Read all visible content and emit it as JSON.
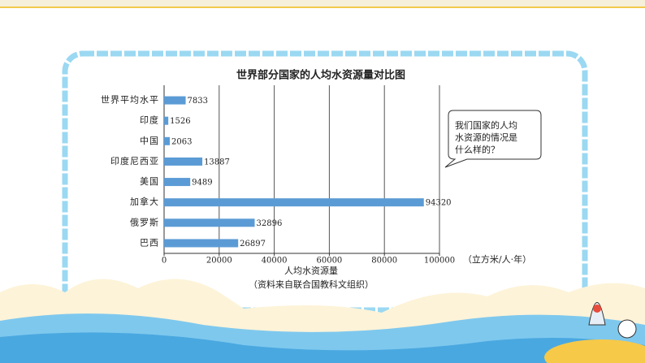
{
  "chart_data": {
    "type": "bar",
    "orientation": "horizontal",
    "title": "世界部分国家的人均水资源量对比图",
    "categories": [
      "世界平均水平",
      "印度",
      "中国",
      "印度尼西亚",
      "美国",
      "加拿大",
      "俄罗斯",
      "巴西"
    ],
    "values": [
      7833,
      1526,
      2063,
      13887,
      9489,
      94320,
      32896,
      26897
    ],
    "color": "#5b9bd5",
    "xlim": [
      0,
      100000
    ],
    "xticks": [
      0,
      20000,
      40000,
      60000,
      80000,
      100000
    ],
    "grid": true,
    "x_unit": "（立方米/人·年）",
    "x_label": "人均水资源量",
    "source": "（资料来自联合国教科文组织）",
    "speech_bubble": [
      "我们国家的人均",
      "水资源的情况是",
      "什么样的？"
    ]
  }
}
